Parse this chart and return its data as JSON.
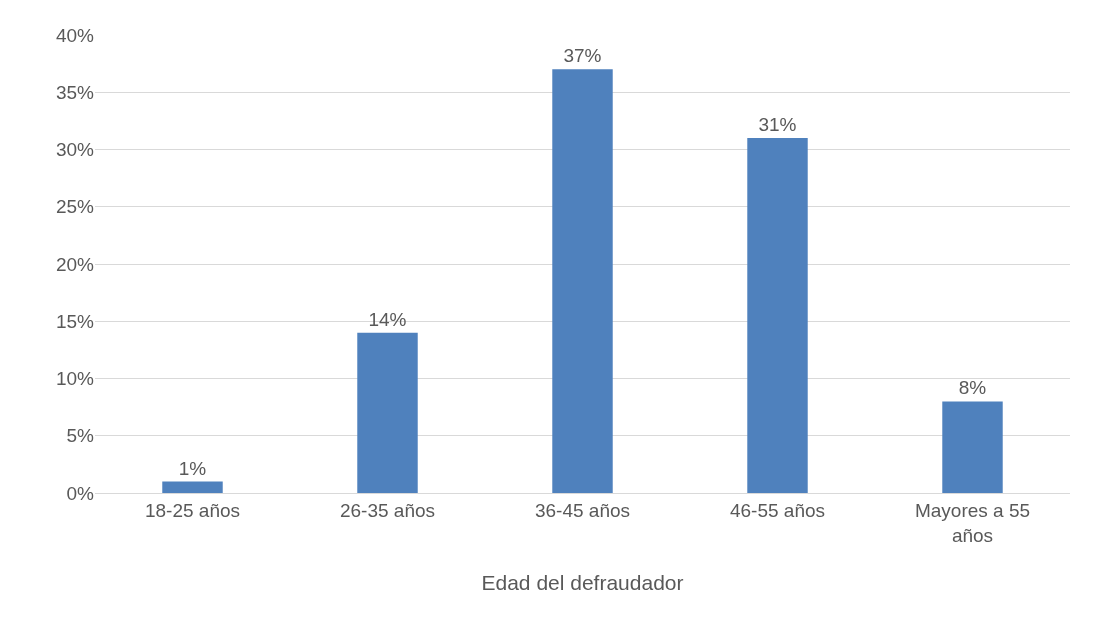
{
  "chart_data": {
    "type": "bar",
    "xlabel": "Edad del defraudador",
    "categories": [
      "18-25 años",
      "26-35 años",
      "36-45 años",
      "46-55 años",
      "Mayores a 55 años"
    ],
    "values": [
      1,
      14,
      37,
      31,
      8
    ],
    "value_labels": [
      "1%",
      "14%",
      "37%",
      "31%",
      "8%"
    ],
    "color": "#4f81bd",
    "ylim": [
      0,
      40
    ],
    "yticks": [
      {
        "value": 0,
        "label": "0%"
      },
      {
        "value": 5,
        "label": "5%"
      },
      {
        "value": 10,
        "label": "10%"
      },
      {
        "value": 15,
        "label": "15%"
      },
      {
        "value": 20,
        "label": "20%"
      },
      {
        "value": 25,
        "label": "25%"
      },
      {
        "value": 30,
        "label": "30%"
      },
      {
        "value": 35,
        "label": "35%"
      },
      {
        "value": 40,
        "label": "40%"
      }
    ],
    "grid": "y"
  }
}
